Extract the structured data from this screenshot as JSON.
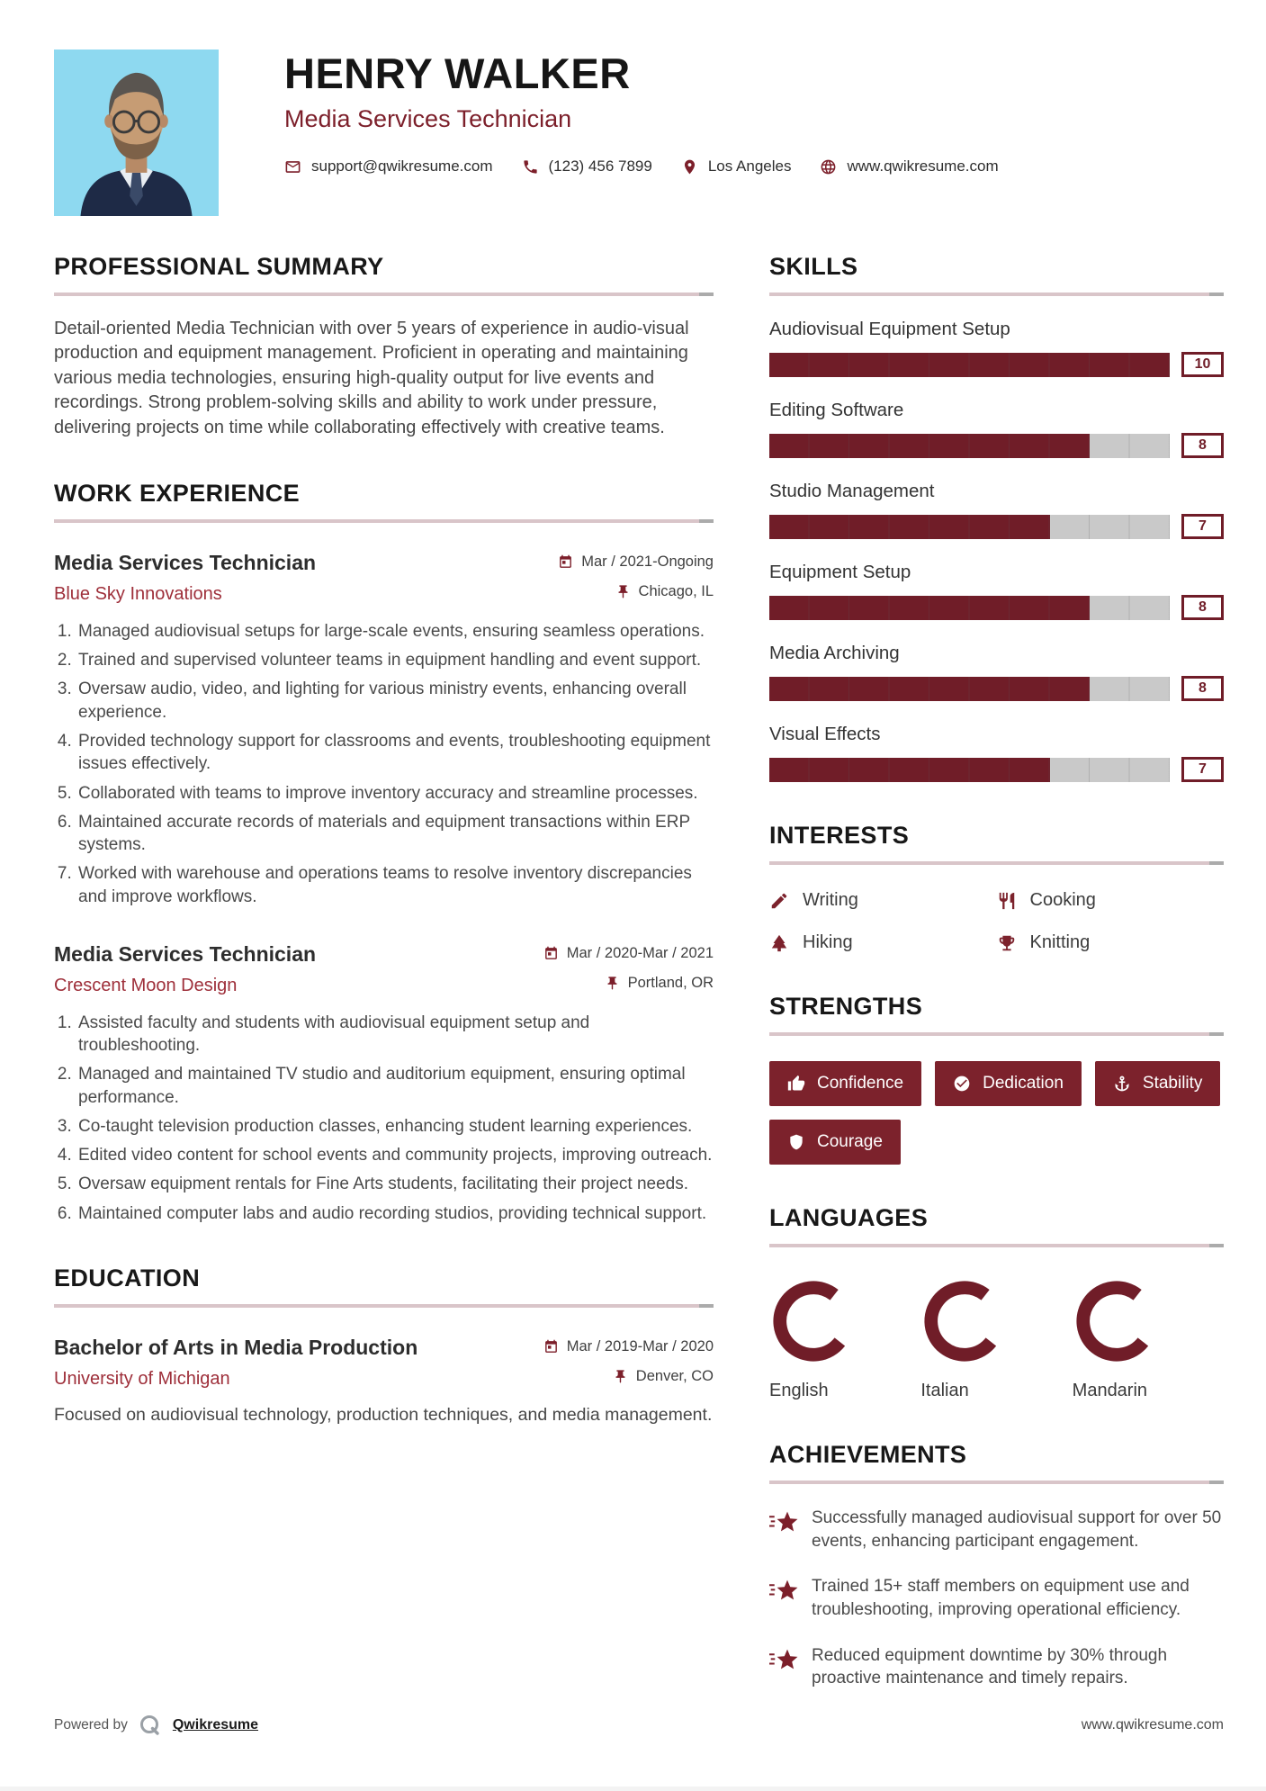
{
  "theme": {
    "maroon": "#701d28",
    "chip_maroon": "#7c222c",
    "company_red": "#9e2f3a",
    "body_text": "#474747",
    "heading": "#181818",
    "track_gray": "#c9c9c9",
    "photo_background": "#8ed9f0"
  },
  "header": {
    "name": "HENRY WALKER",
    "title": "Media Services Technician",
    "contact": [
      {
        "icon": "email-icon",
        "text": "support@qwikresume.com"
      },
      {
        "icon": "phone-icon",
        "text": "(123) 456 7899"
      },
      {
        "icon": "location-icon",
        "text": "Los Angeles"
      },
      {
        "icon": "globe-icon",
        "text": "www.qwikresume.com"
      }
    ]
  },
  "summary": {
    "heading": "PROFESSIONAL SUMMARY",
    "text": "Detail-oriented Media Technician with over 5 years of experience in audio-visual production and equipment management. Proficient in operating and maintaining various media technologies, ensuring high-quality output for live events and recordings. Strong problem-solving skills and ability to work under pressure, delivering projects on time while collaborating effectively with creative teams."
  },
  "experience": {
    "heading": "WORK EXPERIENCE",
    "jobs": [
      {
        "title": "Media Services Technician",
        "company": "Blue Sky Innovations",
        "date": "Mar / 2021-Ongoing",
        "location": "Chicago, IL",
        "bullets": [
          "Managed audiovisual setups for large-scale events, ensuring seamless operations.",
          "Trained and supervised volunteer teams in equipment handling and event support.",
          "Oversaw audio, video, and lighting for various ministry events, enhancing overall experience.",
          "Provided technology support for classrooms and events, troubleshooting equipment issues effectively.",
          "Collaborated with teams to improve inventory accuracy and streamline processes.",
          "Maintained accurate records of materials and equipment transactions within ERP systems.",
          "Worked with warehouse and operations teams to resolve inventory discrepancies and improve workflows."
        ]
      },
      {
        "title": "Media Services Technician",
        "company": "Crescent Moon Design",
        "date": "Mar / 2020-Mar / 2021",
        "location": "Portland, OR",
        "bullets": [
          "Assisted faculty and students with audiovisual equipment setup and troubleshooting.",
          "Managed and maintained TV studio and auditorium equipment, ensuring optimal performance.",
          "Co-taught television production classes, enhancing student learning experiences.",
          "Edited video content for school events and community projects, improving outreach.",
          "Oversaw equipment rentals for Fine Arts students, facilitating their project needs.",
          "Maintained computer labs and audio recording studios, providing technical support."
        ]
      }
    ]
  },
  "education": {
    "heading": "EDUCATION",
    "degree": "Bachelor of Arts in Media Production",
    "school": "University of Michigan",
    "date": "Mar / 2019-Mar / 2020",
    "location": "Denver, CO",
    "description": "Focused on audiovisual technology, production techniques, and media management."
  },
  "skills": {
    "heading": "SKILLS",
    "max": 10,
    "items": [
      {
        "name": "Audiovisual Equipment Setup",
        "level": 10
      },
      {
        "name": "Editing Software",
        "level": 8
      },
      {
        "name": "Studio Management",
        "level": 7
      },
      {
        "name": "Equipment Setup",
        "level": 8
      },
      {
        "name": "Media Archiving",
        "level": 8
      },
      {
        "name": "Visual Effects",
        "level": 7
      }
    ]
  },
  "interests": {
    "heading": "INTERESTS",
    "items": [
      {
        "icon": "pencil-icon",
        "label": "Writing"
      },
      {
        "icon": "utensils-icon",
        "label": "Cooking"
      },
      {
        "icon": "tree-icon",
        "label": "Hiking"
      },
      {
        "icon": "trophy-icon",
        "label": "Knitting"
      }
    ]
  },
  "strengths": {
    "heading": "STRENGTHS",
    "items": [
      {
        "icon": "thumbs-up-icon",
        "label": "Confidence"
      },
      {
        "icon": "check-circle-icon",
        "label": "Dedication"
      },
      {
        "icon": "anchor-icon",
        "label": "Stability"
      },
      {
        "icon": "shield-icon",
        "label": "Courage"
      }
    ]
  },
  "languages": {
    "heading": "LANGUAGES",
    "items": [
      {
        "name": "English",
        "percent": 75
      },
      {
        "name": "Italian",
        "percent": 75
      },
      {
        "name": "Mandarin",
        "percent": 75
      }
    ]
  },
  "achievements": {
    "heading": "ACHIEVEMENTS",
    "items": [
      "Successfully managed audiovisual support for over 50 events, enhancing participant engagement.",
      "Trained 15+ staff members on equipment use and troubleshooting, improving operational efficiency.",
      "Reduced equipment downtime by 30% through proactive maintenance and timely repairs."
    ]
  },
  "footer": {
    "powered_by": "Powered by",
    "brand": "Qwikresume",
    "website": "www.qwikresume.com"
  }
}
